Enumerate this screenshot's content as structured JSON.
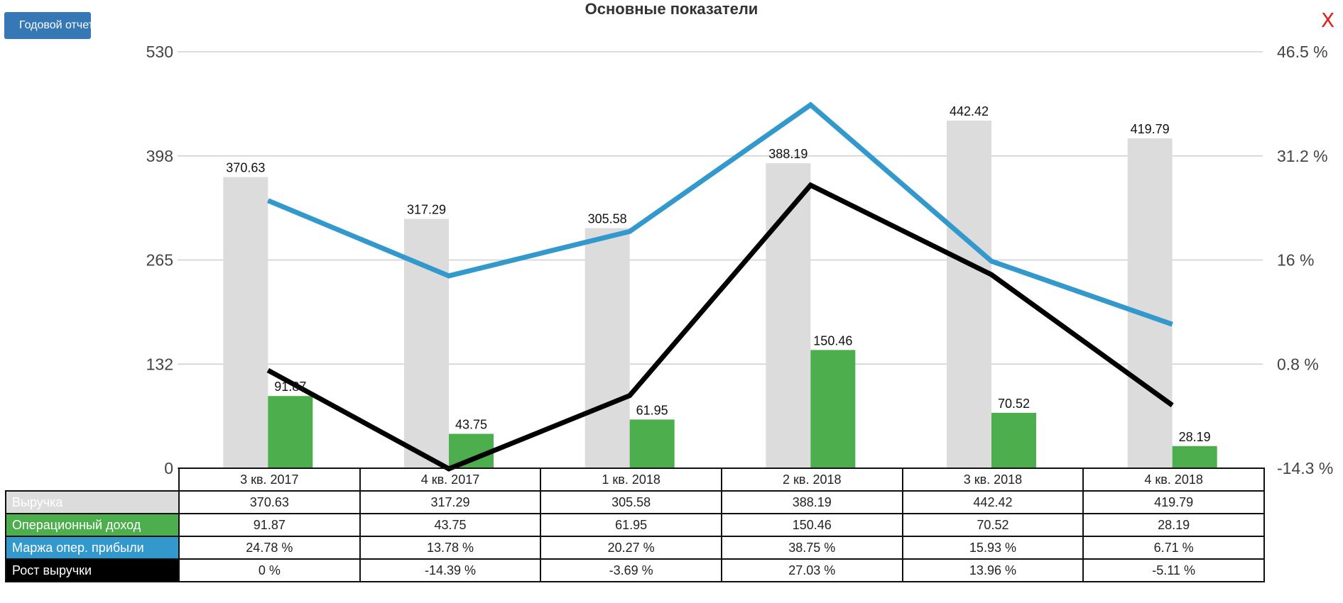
{
  "header": {
    "button_label": "Годовой отчет",
    "title": "Основные показатели",
    "close_label": "X"
  },
  "colors": {
    "revenue": "#dcdcdc",
    "operating_income": "#4cae4c",
    "operating_margin": "#3399cc",
    "revenue_growth": "#000000",
    "close": "#e02020",
    "button": "#3578b5"
  },
  "chart_data": {
    "type": "bar",
    "title": "Основные показатели",
    "categories": [
      "3 кв. 2017",
      "4 кв. 2017",
      "1 кв. 2018",
      "2 кв. 2018",
      "3 кв. 2018",
      "4 кв. 2018"
    ],
    "y_left": {
      "ticks": [
        "530",
        "398",
        "265",
        "132",
        "0"
      ],
      "ylim": [
        0,
        530
      ]
    },
    "y_right": {
      "ticks": [
        "46.5 %",
        "31.2 %",
        "16 %",
        "0.8 %",
        "-14.3 %"
      ],
      "ylim": [
        -14.3,
        46.5
      ]
    },
    "grid": true,
    "series": [
      {
        "name": "Выручка",
        "type": "bar",
        "axis": "left",
        "color": "#dcdcdc",
        "values": [
          370.63,
          317.29,
          305.58,
          388.19,
          442.42,
          419.79
        ],
        "labels": [
          "370.63",
          "317.29",
          "305.58",
          "388.19",
          "442.42",
          "419.79"
        ]
      },
      {
        "name": "Операционный доход",
        "type": "bar",
        "axis": "left",
        "color": "#4cae4c",
        "values": [
          91.87,
          43.75,
          61.95,
          150.46,
          70.52,
          28.19
        ],
        "labels": [
          "91.87",
          "43.75",
          "61.95",
          "150.46",
          "70.52",
          "28.19"
        ]
      },
      {
        "name": "Маржа опер. прибыли",
        "type": "line",
        "axis": "right",
        "color": "#3399cc",
        "values": [
          24.78,
          13.78,
          20.27,
          38.75,
          15.93,
          6.71
        ],
        "labels": [
          "24.78 %",
          "13.78 %",
          "20.27 %",
          "38.75 %",
          "15.93 %",
          "6.71 %"
        ]
      },
      {
        "name": "Рост выручки",
        "type": "line",
        "axis": "right",
        "color": "#000000",
        "values": [
          0,
          -14.39,
          -3.69,
          27.03,
          13.96,
          -5.11
        ],
        "labels": [
          "0 %",
          "-14.39 %",
          "-3.69 %",
          "27.03 %",
          "13.96 %",
          "-5.11 %"
        ]
      }
    ]
  }
}
